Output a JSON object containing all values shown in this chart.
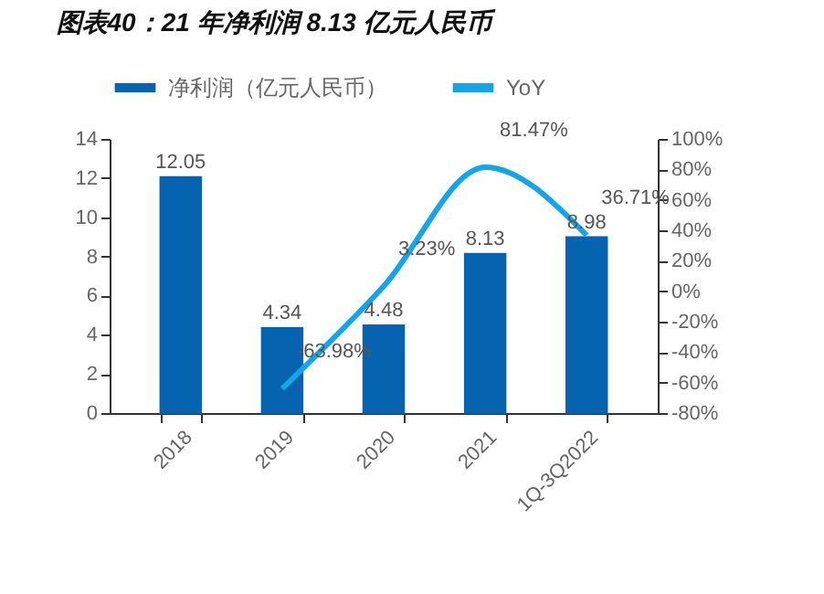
{
  "chart_data": {
    "type": "bar",
    "title": "图表40：21 年净利润 8.13 亿元人民币",
    "categories": [
      "2018",
      "2019",
      "2020",
      "2021",
      "1Q-3Q2022"
    ],
    "series": [
      {
        "name": "净利润（亿元人民币）",
        "color": "#0563b0",
        "values": [
          12.05,
          4.34,
          4.48,
          8.13,
          8.98
        ],
        "value_labels": [
          "12.05",
          "4.34",
          "4.48",
          "8.13",
          "8.98"
        ]
      },
      {
        "name": "YoY",
        "type": "line",
        "axis": "y2",
        "color": "#12a5e8",
        "values": [
          null,
          -63.98,
          3.23,
          81.47,
          36.71
        ],
        "value_labels": [
          null,
          "-63.98%",
          "3.23%",
          "81.47%",
          "36.71%"
        ]
      }
    ],
    "ylim": [
      0,
      14
    ],
    "yticks": [
      0,
      2,
      4,
      6,
      8,
      10,
      12,
      14
    ],
    "y2lim": [
      -80,
      100
    ],
    "y2ticks": [
      {
        "value": -80,
        "label": "-80%"
      },
      {
        "value": -60,
        "label": "-60%"
      },
      {
        "value": -40,
        "label": "-40%"
      },
      {
        "value": -20,
        "label": "-20%"
      },
      {
        "value": 0,
        "label": "0%"
      },
      {
        "value": 20,
        "label": "20%"
      },
      {
        "value": 40,
        "label": "40%"
      },
      {
        "value": 60,
        "label": "60%"
      },
      {
        "value": 80,
        "label": "80%"
      },
      {
        "value": 100,
        "label": "100%"
      }
    ],
    "grid": false,
    "legend": "top",
    "marker": "none",
    "line_style": "solid"
  }
}
